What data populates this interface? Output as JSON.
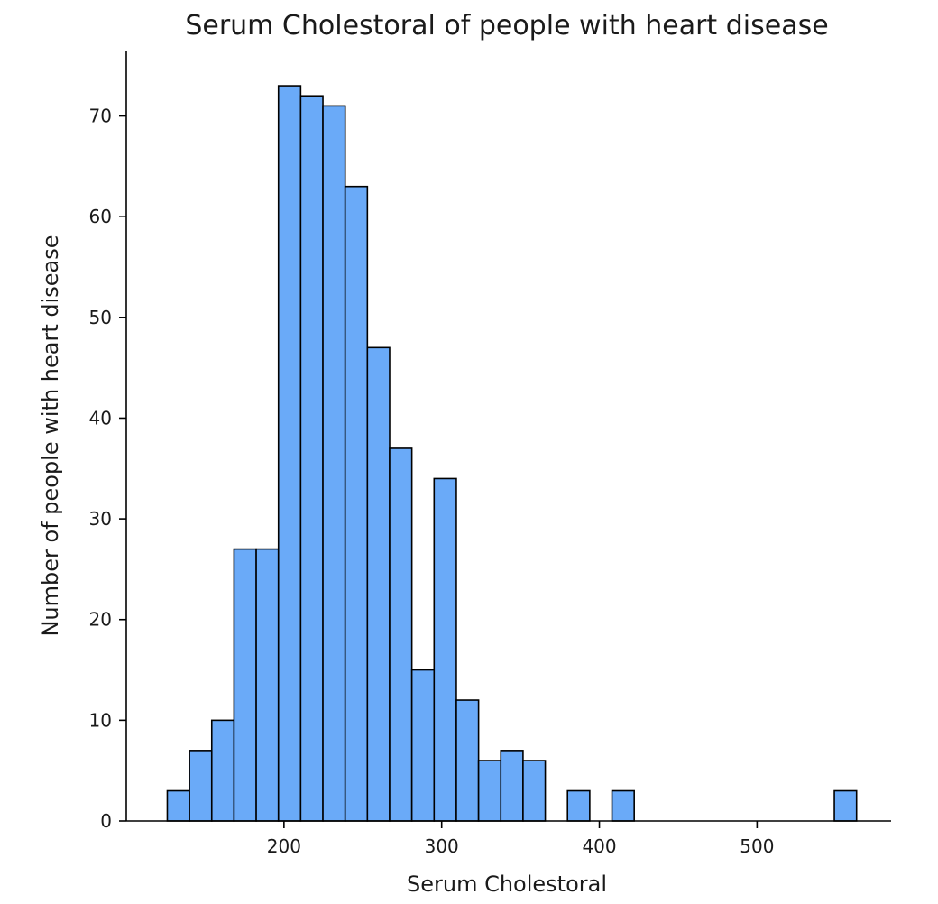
{
  "chart_data": {
    "type": "bar",
    "title": "Serum Cholestoral of people with heart disease",
    "xlabel": "Serum Cholestoral",
    "ylabel": "Number of people with heart disease",
    "xlim": [
      100,
      585
    ],
    "ylim": [
      0,
      76.5
    ],
    "xticks": [
      200,
      300,
      400,
      500
    ],
    "yticks": [
      0,
      10,
      20,
      30,
      40,
      50,
      60,
      70
    ],
    "bin_width": 14.1,
    "bin_starts": [
      126,
      140.1,
      154.2,
      168.3,
      182.4,
      196.5,
      210.6,
      224.7,
      238.8,
      252.9,
      267,
      281.1,
      295.2,
      309.3,
      323.4,
      337.5,
      351.6,
      379.8,
      408,
      549
    ],
    "values": [
      3,
      7,
      10,
      27,
      27,
      73,
      72,
      71,
      63,
      47,
      37,
      15,
      34,
      12,
      6,
      7,
      6,
      3,
      3,
      3
    ],
    "bar_color": "#6aaaf8",
    "edge_color": "#000000",
    "grid": false
  }
}
